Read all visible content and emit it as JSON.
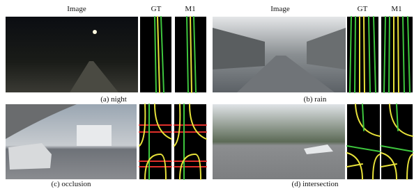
{
  "panels": [
    {
      "headers": [
        "Image",
        "GT",
        "M1"
      ],
      "caption": "(a) night"
    },
    {
      "headers": [
        "Image",
        "GT",
        "M1"
      ],
      "caption": "(b) rain"
    },
    {
      "caption": "(c) occlusion"
    },
    {
      "caption": "(d) intersection"
    }
  ]
}
